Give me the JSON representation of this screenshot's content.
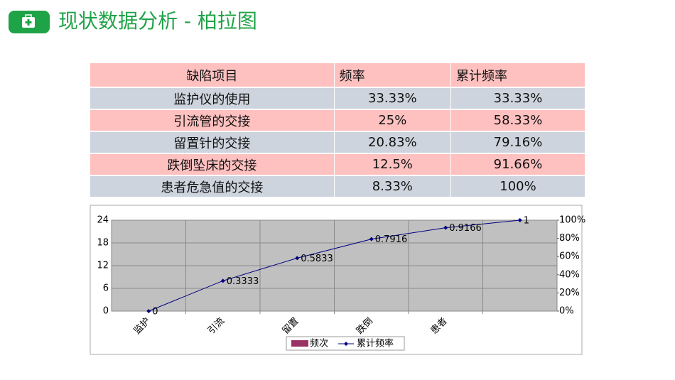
{
  "header": {
    "title": "现状数据分析 - 柏拉图"
  },
  "table": {
    "header": [
      "缺陷项目",
      "频率",
      "累计频率"
    ],
    "rows": [
      [
        "监护仪的使用",
        "33.33%",
        "33.33%"
      ],
      [
        "引流管的交接",
        "25%",
        "58.33%"
      ],
      [
        "留置针的交接",
        "20.83%",
        "79.16%"
      ],
      [
        "跌倒坠床的交接",
        "12.5%",
        "91.66%"
      ],
      [
        "患者危急值的交接",
        "8.33%",
        "100%"
      ]
    ]
  },
  "chart_data": {
    "type": "pareto",
    "categories": [
      "监护",
      "引流",
      "留置",
      "跌倒",
      "患者",
      null
    ],
    "ylim": [
      0,
      24
    ],
    "yticks": [
      0,
      6,
      12,
      18,
      24
    ],
    "y2lim": [
      0,
      1
    ],
    "y2ticks": [
      {
        "value": 0,
        "label": "0%"
      },
      {
        "value": 0.2,
        "label": "20%"
      },
      {
        "value": 0.4,
        "label": "40%"
      },
      {
        "value": 0.6,
        "label": "60%"
      },
      {
        "value": 0.8,
        "label": "80%"
      },
      {
        "value": 1,
        "label": "100%"
      }
    ],
    "grid": true,
    "series": [
      {
        "name": "频次",
        "color": "#993366",
        "type": "bar",
        "values": [
          null,
          null,
          null,
          null,
          null,
          null
        ]
      },
      {
        "name": "累计频率",
        "color": "#000080",
        "type": "line",
        "axis": "y2",
        "values": [
          0,
          0.3333,
          0.5833,
          0.7916,
          0.9166,
          1
        ]
      }
    ]
  }
}
